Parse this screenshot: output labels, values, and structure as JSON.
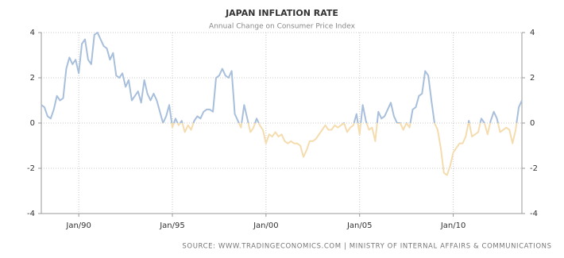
{
  "chart_data": {
    "type": "line",
    "title": "JAPAN INFLATION RATE",
    "subtitle": "Annual Change on Consumer Price Index",
    "source": "SOURCE: WWW.TRADINGECONOMICS.COM  |  MINISTRY OF INTERNAL AFFAIRS & COMMUNICATIONS",
    "x": [
      "1988-01",
      "1988-03",
      "1988-05",
      "1988-07",
      "1988-09",
      "1988-11",
      "1989-01",
      "1989-03",
      "1989-05",
      "1989-07",
      "1989-09",
      "1989-11",
      "1990-01",
      "1990-03",
      "1990-05",
      "1990-07",
      "1990-09",
      "1990-11",
      "1991-01",
      "1991-03",
      "1991-05",
      "1991-07",
      "1991-09",
      "1991-11",
      "1992-01",
      "1992-03",
      "1992-05",
      "1992-07",
      "1992-09",
      "1992-11",
      "1993-01",
      "1993-03",
      "1993-05",
      "1993-07",
      "1993-09",
      "1993-11",
      "1994-01",
      "1994-03",
      "1994-05",
      "1994-07",
      "1994-09",
      "1994-11",
      "1995-01",
      "1995-03",
      "1995-05",
      "1995-07",
      "1995-09",
      "1995-11",
      "1996-01",
      "1996-03",
      "1996-05",
      "1996-07",
      "1996-09",
      "1996-11",
      "1997-01",
      "1997-03",
      "1997-05",
      "1997-07",
      "1997-09",
      "1997-11",
      "1998-01",
      "1998-03",
      "1998-05",
      "1998-07",
      "1998-09",
      "1998-11",
      "1999-01",
      "1999-03",
      "1999-05",
      "1999-07",
      "1999-09",
      "1999-11",
      "2000-01",
      "2000-03",
      "2000-05",
      "2000-07",
      "2000-09",
      "2000-11",
      "2001-01",
      "2001-03",
      "2001-05",
      "2001-07",
      "2001-09",
      "2001-11",
      "2002-01",
      "2002-03",
      "2002-05",
      "2002-07",
      "2002-09",
      "2002-11",
      "2003-01",
      "2003-03",
      "2003-05",
      "2003-07",
      "2003-09",
      "2003-11",
      "2004-01",
      "2004-03",
      "2004-05",
      "2004-07",
      "2004-09",
      "2004-11",
      "2005-01",
      "2005-03",
      "2005-05",
      "2005-07",
      "2005-09",
      "2005-11",
      "2006-01",
      "2006-03",
      "2006-05",
      "2006-07",
      "2006-09",
      "2006-11",
      "2007-01",
      "2007-03",
      "2007-05",
      "2007-07",
      "2007-09",
      "2007-11",
      "2008-01",
      "2008-03",
      "2008-05",
      "2008-07",
      "2008-09",
      "2008-11",
      "2009-01",
      "2009-03",
      "2009-05",
      "2009-07",
      "2009-09",
      "2009-11",
      "2010-01",
      "2010-03",
      "2010-05",
      "2010-07",
      "2010-09",
      "2010-11",
      "2011-01",
      "2011-03",
      "2011-05",
      "2011-07",
      "2011-09",
      "2011-11",
      "2012-01",
      "2012-03",
      "2012-05",
      "2012-07",
      "2012-09",
      "2012-11",
      "2013-01",
      "2013-03",
      "2013-05",
      "2013-07",
      "2013-09"
    ],
    "series": [
      {
        "color": "#a8bfdc",
        "negative_color": "#f5dcae",
        "values": [
          0.8,
          0.7,
          0.3,
          0.2,
          0.6,
          1.2,
          1.0,
          1.1,
          2.4,
          2.9,
          2.6,
          2.8,
          2.2,
          3.5,
          3.7,
          2.8,
          2.6,
          3.9,
          4.0,
          3.7,
          3.4,
          3.3,
          2.8,
          3.1,
          2.1,
          2.0,
          2.2,
          1.6,
          1.9,
          1.0,
          1.2,
          1.4,
          0.9,
          1.9,
          1.3,
          1.0,
          1.3,
          1.0,
          0.5,
          0.0,
          0.3,
          0.8,
          -0.2,
          0.2,
          -0.1,
          0.1,
          -0.4,
          -0.1,
          -0.3,
          0.1,
          0.3,
          0.2,
          0.5,
          0.6,
          0.6,
          0.5,
          2.0,
          2.1,
          2.4,
          2.1,
          2.0,
          2.3,
          0.4,
          0.1,
          -0.2,
          0.8,
          0.2,
          -0.4,
          -0.2,
          0.2,
          -0.1,
          -0.3,
          -0.9,
          -0.5,
          -0.6,
          -0.4,
          -0.6,
          -0.5,
          -0.8,
          -0.9,
          -0.8,
          -0.9,
          -0.9,
          -1.0,
          -1.5,
          -1.2,
          -0.8,
          -0.8,
          -0.7,
          -0.5,
          -0.3,
          -0.1,
          -0.3,
          -0.3,
          -0.1,
          -0.2,
          -0.1,
          0.0,
          -0.4,
          -0.2,
          -0.1,
          0.4,
          -0.5,
          0.8,
          0.1,
          -0.3,
          -0.2,
          -0.8,
          0.5,
          0.2,
          0.3,
          0.6,
          0.9,
          0.3,
          0.0,
          0.0,
          -0.3,
          0.0,
          -0.2,
          0.6,
          0.7,
          1.2,
          1.3,
          2.3,
          2.1,
          1.0,
          0.0,
          -0.3,
          -1.1,
          -2.2,
          -2.3,
          -1.9,
          -1.3,
          -1.1,
          -0.9,
          -0.9,
          -0.6,
          0.1,
          -0.6,
          -0.5,
          -0.4,
          0.2,
          0.0,
          -0.5,
          0.1,
          0.5,
          0.2,
          -0.4,
          -0.3,
          -0.2,
          -0.3,
          -0.9,
          -0.3,
          0.7,
          1.0
        ]
      }
    ],
    "xlim": [
      "1988-01",
      "2013-09"
    ],
    "xticks": [
      {
        "value": "1990-01",
        "label": "Jan/90"
      },
      {
        "value": "1995-01",
        "label": "Jan/95"
      },
      {
        "value": "2000-01",
        "label": "Jan/00"
      },
      {
        "value": "2005-01",
        "label": "Jan/05"
      },
      {
        "value": "2010-01",
        "label": "Jan/10"
      }
    ],
    "ylim": [
      -4,
      4
    ],
    "yticks": [
      -4,
      -2,
      0,
      2,
      4
    ],
    "y2lim": [
      -4,
      4
    ],
    "y2ticks": [
      -4,
      -2,
      0,
      2,
      4
    ],
    "grid": true
  }
}
